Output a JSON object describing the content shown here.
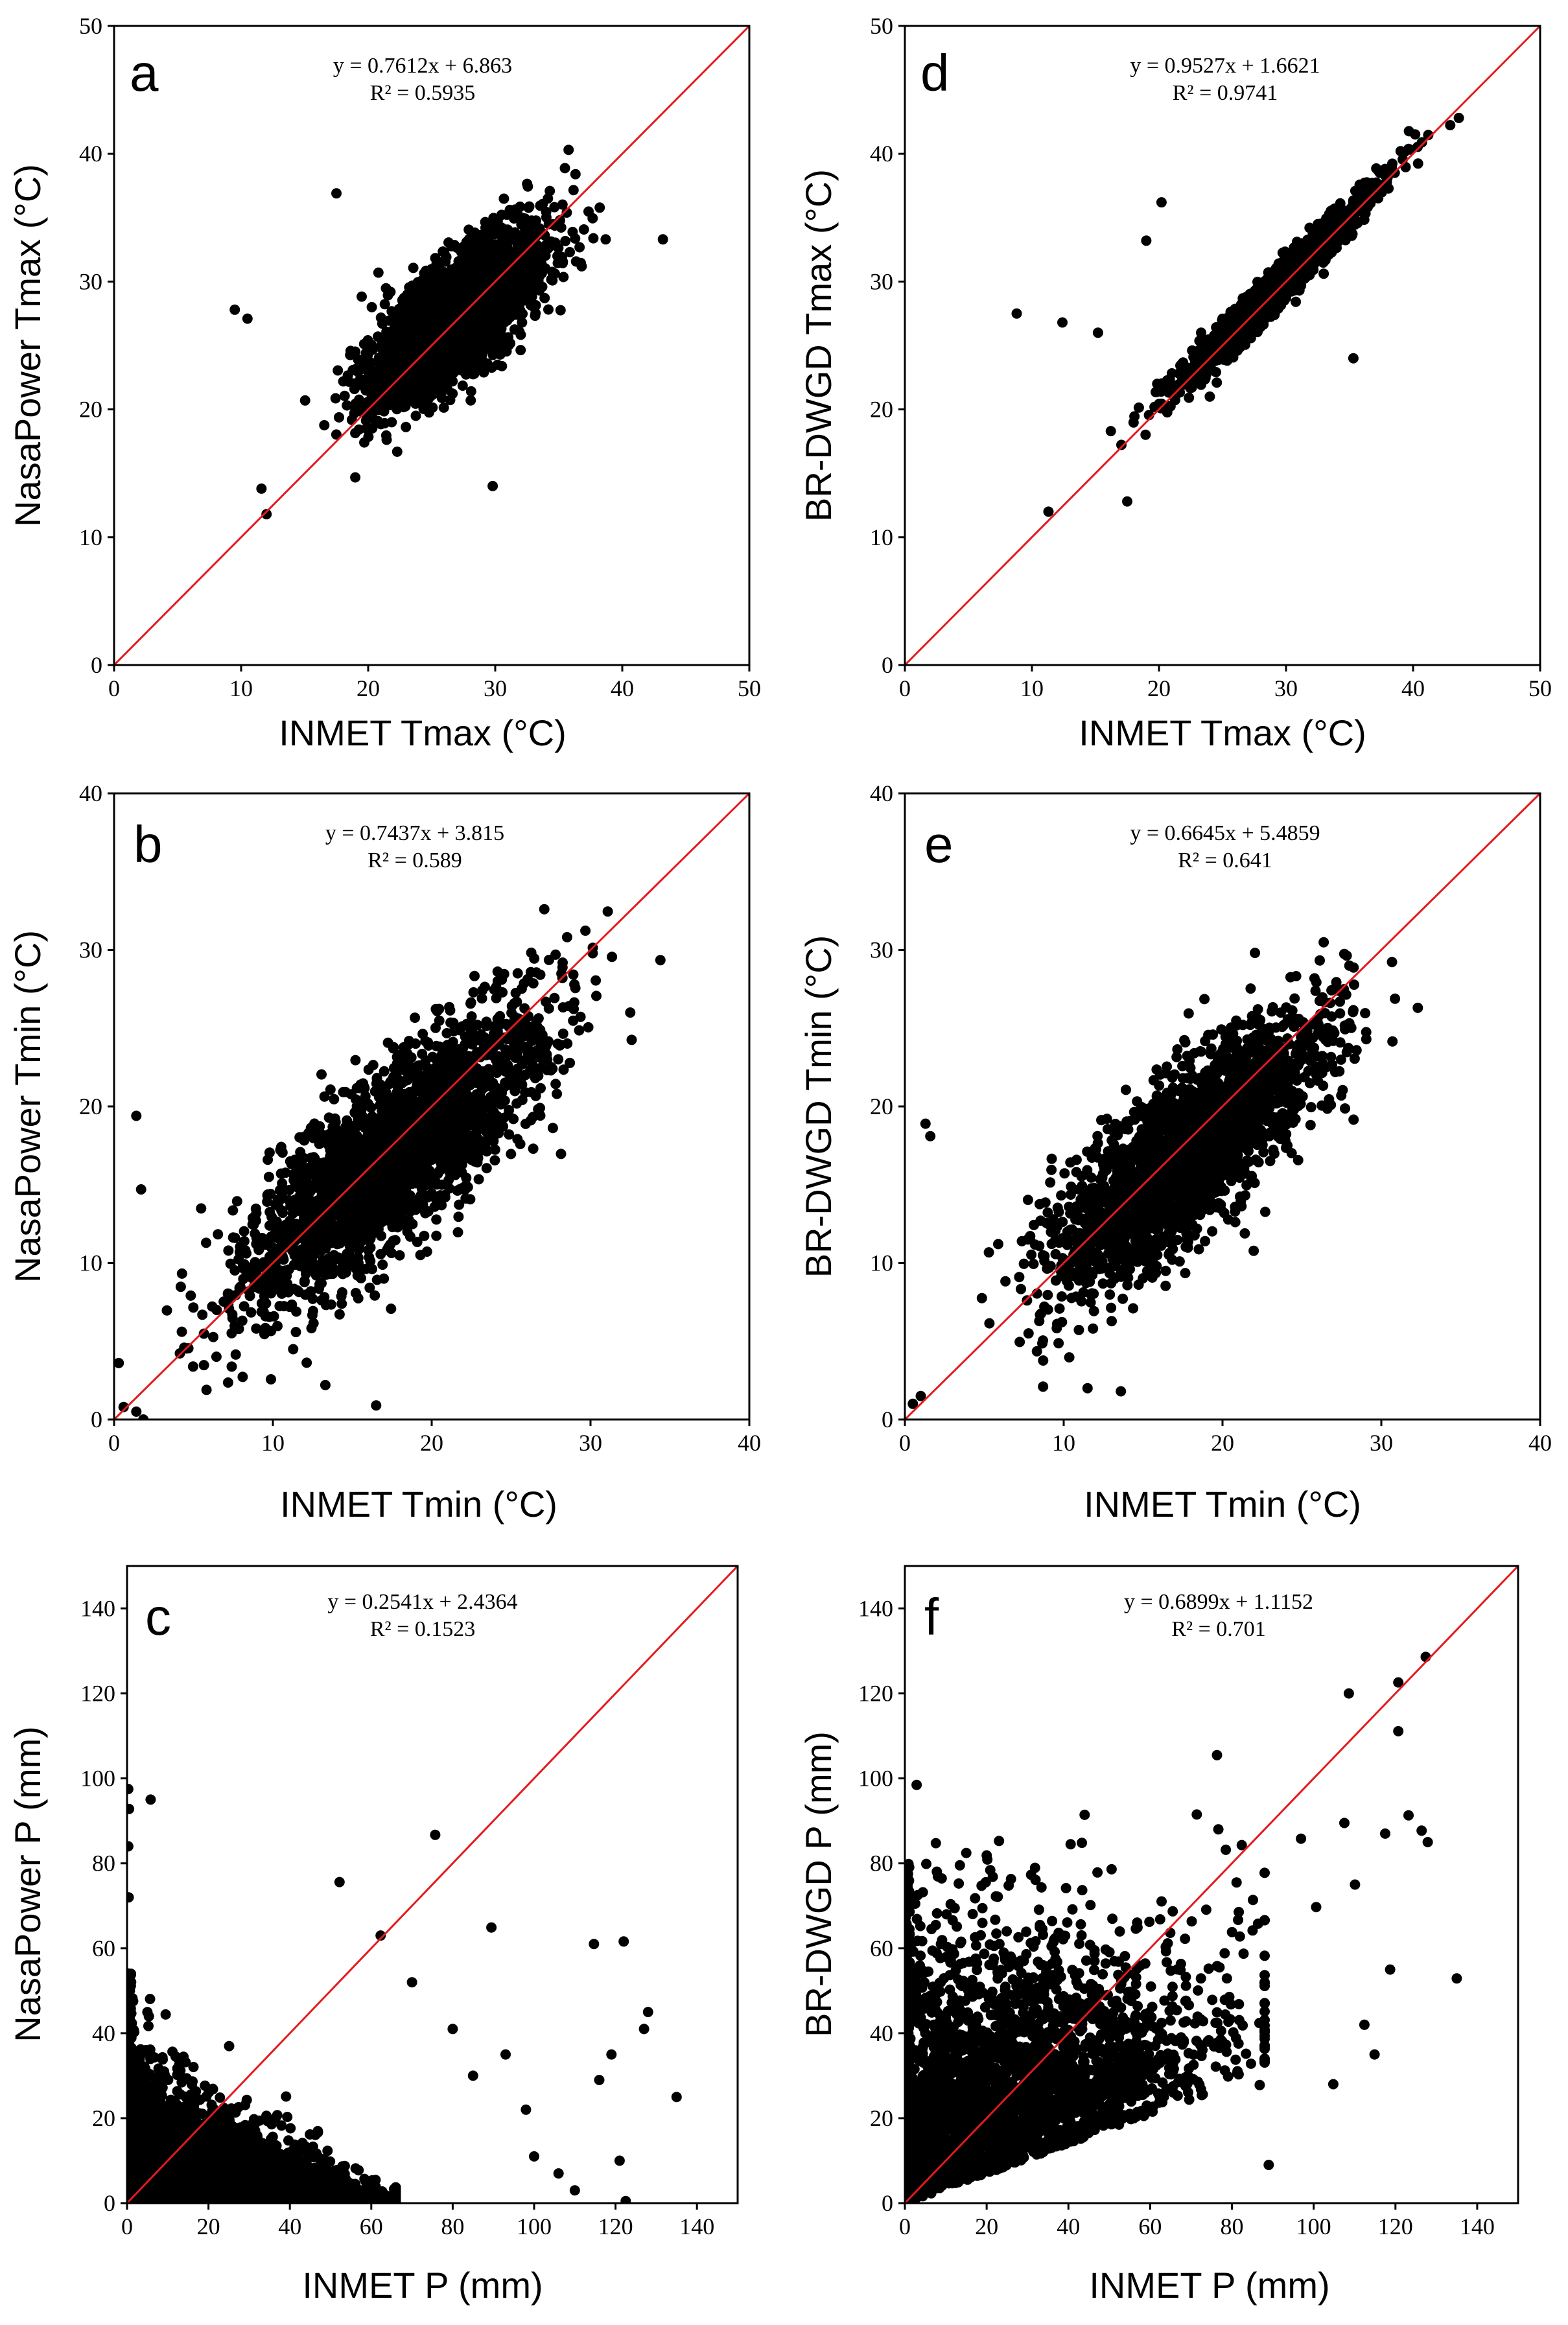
{
  "chart_data": [
    {
      "type": "scatter",
      "panel": "a",
      "equation": "y = 0.7612x + 6.863",
      "r2": "R² = 0.5935",
      "xlabel": "INMET Tmax (°C)",
      "ylabel": "NasaPower Tmax (°C)",
      "xlim": [
        0,
        50
      ],
      "ylim": [
        0,
        50
      ],
      "xticks": [
        0,
        10,
        20,
        30,
        40,
        50
      ],
      "yticks": [
        0,
        10,
        20,
        30,
        40,
        50
      ],
      "xtick_labels": [
        "0",
        "10",
        "20",
        "30",
        "40",
        "50"
      ],
      "ytick_labels": [
        "0",
        "10",
        "20",
        "30",
        "40",
        "50"
      ],
      "fit": {
        "slope": 0.7612,
        "intercept": 6.863
      },
      "cloud": {
        "center": [
          27,
          27.4
        ],
        "sd_along": 4.5,
        "sd_across": 1.8,
        "count": 2600
      },
      "outliers": [
        [
          9.5,
          27.8
        ],
        [
          10.5,
          27.1
        ],
        [
          43.2,
          33.3
        ],
        [
          12,
          11.8
        ],
        [
          11.6,
          13.8
        ],
        [
          17.5,
          36.9
        ],
        [
          29.8,
          14
        ]
      ],
      "identity_line": true
    },
    {
      "type": "scatter",
      "panel": "d",
      "equation": "y = 0.9527x + 1.6621",
      "r2": "R² = 0.9741",
      "xlabel": "INMET Tmax (°C)",
      "ylabel": "BR-DWGD Tmax (°C)",
      "xlim": [
        0,
        50
      ],
      "ylim": [
        0,
        50
      ],
      "xticks": [
        0,
        10,
        20,
        30,
        40,
        50
      ],
      "yticks": [
        0,
        10,
        20,
        30,
        40,
        50
      ],
      "xtick_labels": [
        "0",
        "10",
        "20",
        "30",
        "40",
        "50"
      ],
      "ytick_labels": [
        "0",
        "10",
        "20",
        "30",
        "40",
        "50"
      ],
      "fit": {
        "slope": 0.9527,
        "intercept": 1.6621
      },
      "cloud": {
        "center": [
          29,
          29.3
        ],
        "sd_along": 5.2,
        "sd_across": 0.55,
        "count": 1800
      },
      "outliers": [
        [
          8.8,
          27.5
        ],
        [
          12.4,
          26.8
        ],
        [
          43.6,
          42.8
        ],
        [
          17.5,
          12.8
        ],
        [
          20.2,
          36.2
        ],
        [
          11.3,
          12
        ],
        [
          15.2,
          26
        ],
        [
          19,
          33.2
        ],
        [
          24,
          21
        ],
        [
          35.3,
          24
        ]
      ],
      "identity_line": true
    },
    {
      "type": "scatter",
      "panel": "b",
      "equation": "y = 0.7437x + 3.815",
      "r2": "R² = 0.589",
      "xlabel": "INMET Tmin (°C)",
      "ylabel": "NasaPower Tmin (°C)",
      "xlim": [
        0,
        40
      ],
      "ylim": [
        0,
        40
      ],
      "xticks": [
        0,
        10,
        20,
        30,
        40
      ],
      "yticks": [
        0,
        10,
        20,
        30,
        40
      ],
      "xtick_labels": [
        "0",
        "10",
        "20",
        "30",
        "40"
      ],
      "ytick_labels": [
        "0",
        "10",
        "20",
        "30",
        "40"
      ],
      "fit": {
        "slope": 0.7437,
        "intercept": 3.815
      },
      "cloud": {
        "center": [
          17.5,
          16.8
        ],
        "sd_along": 6.3,
        "sd_across": 2.1,
        "count": 2600
      },
      "outliers": [
        [
          1.4,
          19.4
        ],
        [
          1.7,
          14.7
        ],
        [
          0.6,
          0.8
        ],
        [
          1.4,
          0.5
        ],
        [
          32.5,
          26
        ],
        [
          16.5,
          0.9
        ],
        [
          13.3,
          2.2
        ]
      ],
      "identity_line": true
    },
    {
      "type": "scatter",
      "panel": "e",
      "equation": "y = 0.6645x + 5.4859",
      "r2": "R² = 0.641",
      "xlabel": "INMET Tmin (°C)",
      "ylabel": "BR-DWGD Tmin (°C)",
      "xlim": [
        0,
        40
      ],
      "ylim": [
        0,
        40
      ],
      "xticks": [
        0,
        10,
        20,
        30,
        40
      ],
      "yticks": [
        0,
        10,
        20,
        30,
        40
      ],
      "xtick_labels": [
        "0",
        "10",
        "20",
        "30",
        "40"
      ],
      "ytick_labels": [
        "0",
        "10",
        "20",
        "30",
        "40"
      ],
      "fit": {
        "slope": 0.6645,
        "intercept": 5.4859
      },
      "cloud": {
        "center": [
          18,
          17.3
        ],
        "sd_along": 5.6,
        "sd_across": 1.9,
        "count": 2400
      },
      "outliers": [
        [
          1.3,
          18.9
        ],
        [
          1.6,
          18.1
        ],
        [
          0.5,
          1
        ],
        [
          1,
          1.5
        ],
        [
          32.3,
          26.3
        ],
        [
          11.5,
          2
        ],
        [
          13.6,
          1.8
        ],
        [
          8.7,
          2.1
        ],
        [
          27.3,
          27.4
        ]
      ],
      "identity_line": true
    },
    {
      "type": "scatter",
      "panel": "c",
      "equation": "y = 0.2541x + 2.4364",
      "r2": "R² = 0.1523",
      "xlabel": "INMET P (mm)",
      "ylabel": "NasaPower P (mm)",
      "xlim": [
        0,
        150
      ],
      "ylim": [
        0,
        150
      ],
      "xticks": [
        0,
        20,
        40,
        60,
        80,
        100,
        120,
        140
      ],
      "yticks": [
        0,
        20,
        40,
        60,
        80,
        100,
        120,
        140
      ],
      "xtick_labels": [
        "0",
        "20",
        "40",
        "60",
        "80",
        "100",
        "120",
        "140"
      ],
      "ytick_labels": [
        "0",
        "20",
        "40",
        "60",
        "80",
        "100",
        "120",
        "140"
      ],
      "fit": {
        "slope": 0.2541,
        "intercept": 2.4364
      },
      "precip": {
        "dense_x_max": 60,
        "dense_y_max": 35,
        "count": 2600
      },
      "outliers": [
        [
          0.3,
          97.5
        ],
        [
          0.5,
          92.8
        ],
        [
          5.8,
          95
        ],
        [
          75.7,
          86.7
        ],
        [
          52.2,
          75.6
        ],
        [
          62.3,
          63
        ],
        [
          89.5,
          64.9
        ],
        [
          114.7,
          61
        ],
        [
          122,
          61.6
        ],
        [
          128,
          45
        ],
        [
          135,
          25
        ],
        [
          116,
          29
        ],
        [
          121,
          10
        ],
        [
          122.5,
          0.5
        ],
        [
          110,
          3
        ],
        [
          100,
          11
        ],
        [
          106,
          7
        ],
        [
          98,
          22
        ],
        [
          85,
          30
        ],
        [
          70,
          52
        ],
        [
          80,
          41
        ],
        [
          93,
          35
        ],
        [
          127,
          41
        ],
        [
          119,
          35
        ],
        [
          0.4,
          72
        ],
        [
          0.3,
          84
        ]
      ],
      "identity_line": true
    },
    {
      "type": "scatter",
      "panel": "f",
      "equation": "y = 0.6899x + 1.1152",
      "r2": "R² = 0.701",
      "xlabel": "INMET P (mm)",
      "ylabel": "BR-DWGD P (mm)",
      "xlim": [
        0,
        150
      ],
      "ylim": [
        0,
        150
      ],
      "xticks": [
        0,
        20,
        40,
        60,
        80,
        100,
        120,
        140
      ],
      "yticks": [
        0,
        20,
        40,
        60,
        80,
        100,
        120,
        140
      ],
      "xtick_labels": [
        "0",
        "20",
        "40",
        "60",
        "80",
        "100",
        "120",
        "140"
      ],
      "ytick_labels": [
        "0",
        "20",
        "40",
        "60",
        "80",
        "100",
        "120",
        "140"
      ],
      "fit": {
        "slope": 0.6899,
        "intercept": 1.1152
      },
      "precip": {
        "dense_x_max": 80,
        "dense_y_max": 60,
        "count": 2600
      },
      "outliers": [
        [
          108.6,
          120
        ],
        [
          120.7,
          122.6
        ],
        [
          127.4,
          128.6
        ],
        [
          120.7,
          111.1
        ],
        [
          135,
          52.9
        ],
        [
          114.9,
          35
        ],
        [
          104.8,
          28
        ],
        [
          123.2,
          91.3
        ],
        [
          126.4,
          87.7
        ],
        [
          117.5,
          87
        ],
        [
          110.1,
          75
        ],
        [
          107.5,
          89.5
        ],
        [
          118.7,
          55
        ],
        [
          127.9,
          85
        ],
        [
          100.6,
          69.7
        ],
        [
          96.9,
          85.8
        ],
        [
          112.4,
          42
        ],
        [
          89,
          9
        ],
        [
          86.8,
          27.8
        ],
        [
          71.4,
          91.5
        ],
        [
          78.5,
          83.2
        ],
        [
          82.4,
          84.3
        ],
        [
          0.5,
          61
        ],
        [
          0.6,
          55
        ]
      ],
      "identity_line": true
    }
  ],
  "colors": {
    "points": "#000000",
    "identity": "#e31a1c",
    "axes": "#000000"
  }
}
